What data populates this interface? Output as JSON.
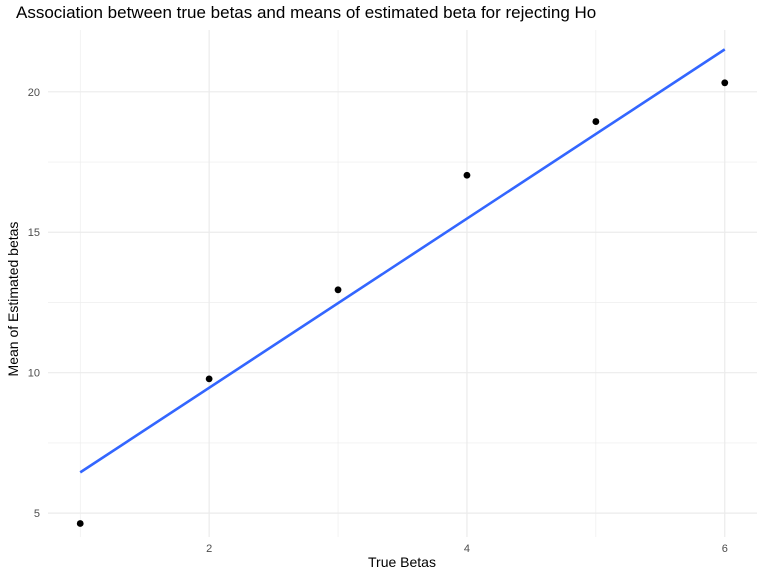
{
  "chart_data": {
    "type": "scatter",
    "title": "Association between true betas and means of estimated beta for rejecting Ho",
    "xlabel": "True Betas",
    "ylabel": "Mean of Estimated betas",
    "x_ticks": [
      2,
      4,
      6
    ],
    "y_ticks": [
      5,
      10,
      15,
      20
    ],
    "xlim": [
      0.75,
      6.25
    ],
    "ylim": [
      4.15,
      22.2
    ],
    "grid": true,
    "points": [
      {
        "x": 1,
        "y": 4.63
      },
      {
        "x": 2,
        "y": 9.78
      },
      {
        "x": 3,
        "y": 12.95
      },
      {
        "x": 4,
        "y": 17.03
      },
      {
        "x": 5,
        "y": 18.94
      },
      {
        "x": 6,
        "y": 20.32
      }
    ],
    "fit_line": {
      "x0": 1,
      "y0": 6.45,
      "x1": 6,
      "y1": 21.51,
      "color": "#3366ff"
    },
    "point_color": "#000000",
    "grid_color": "#ebebeb"
  }
}
